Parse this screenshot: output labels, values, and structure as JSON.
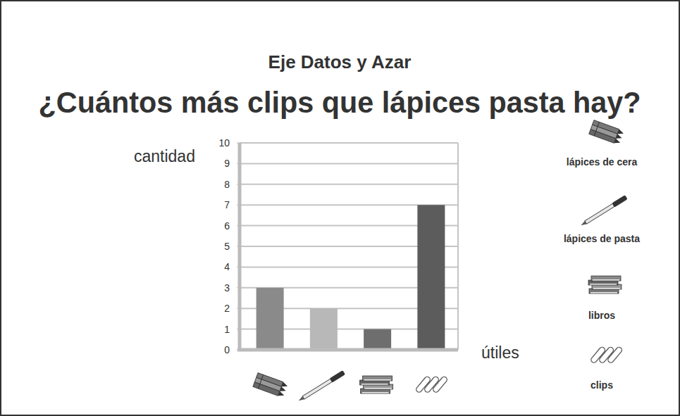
{
  "chart_data": {
    "type": "bar",
    "subtitle": "Eje Datos y Azar",
    "title": "¿Cuántos más clips que lápices pasta hay?",
    "x_label": "útiles",
    "y_label": "cantidad",
    "categories": [
      "lápices de cera",
      "lápices de pasta",
      "libros",
      "clips"
    ],
    "values": [
      3,
      2,
      1,
      7
    ],
    "colors": [
      "#8a8a8a",
      "#b8b8b8",
      "#6e6e6e",
      "#5c5c5c"
    ],
    "ylim": [
      0,
      10
    ],
    "yticks": [
      0,
      1,
      2,
      3,
      4,
      5,
      6,
      7,
      8,
      9,
      10
    ],
    "grid": true
  }
}
